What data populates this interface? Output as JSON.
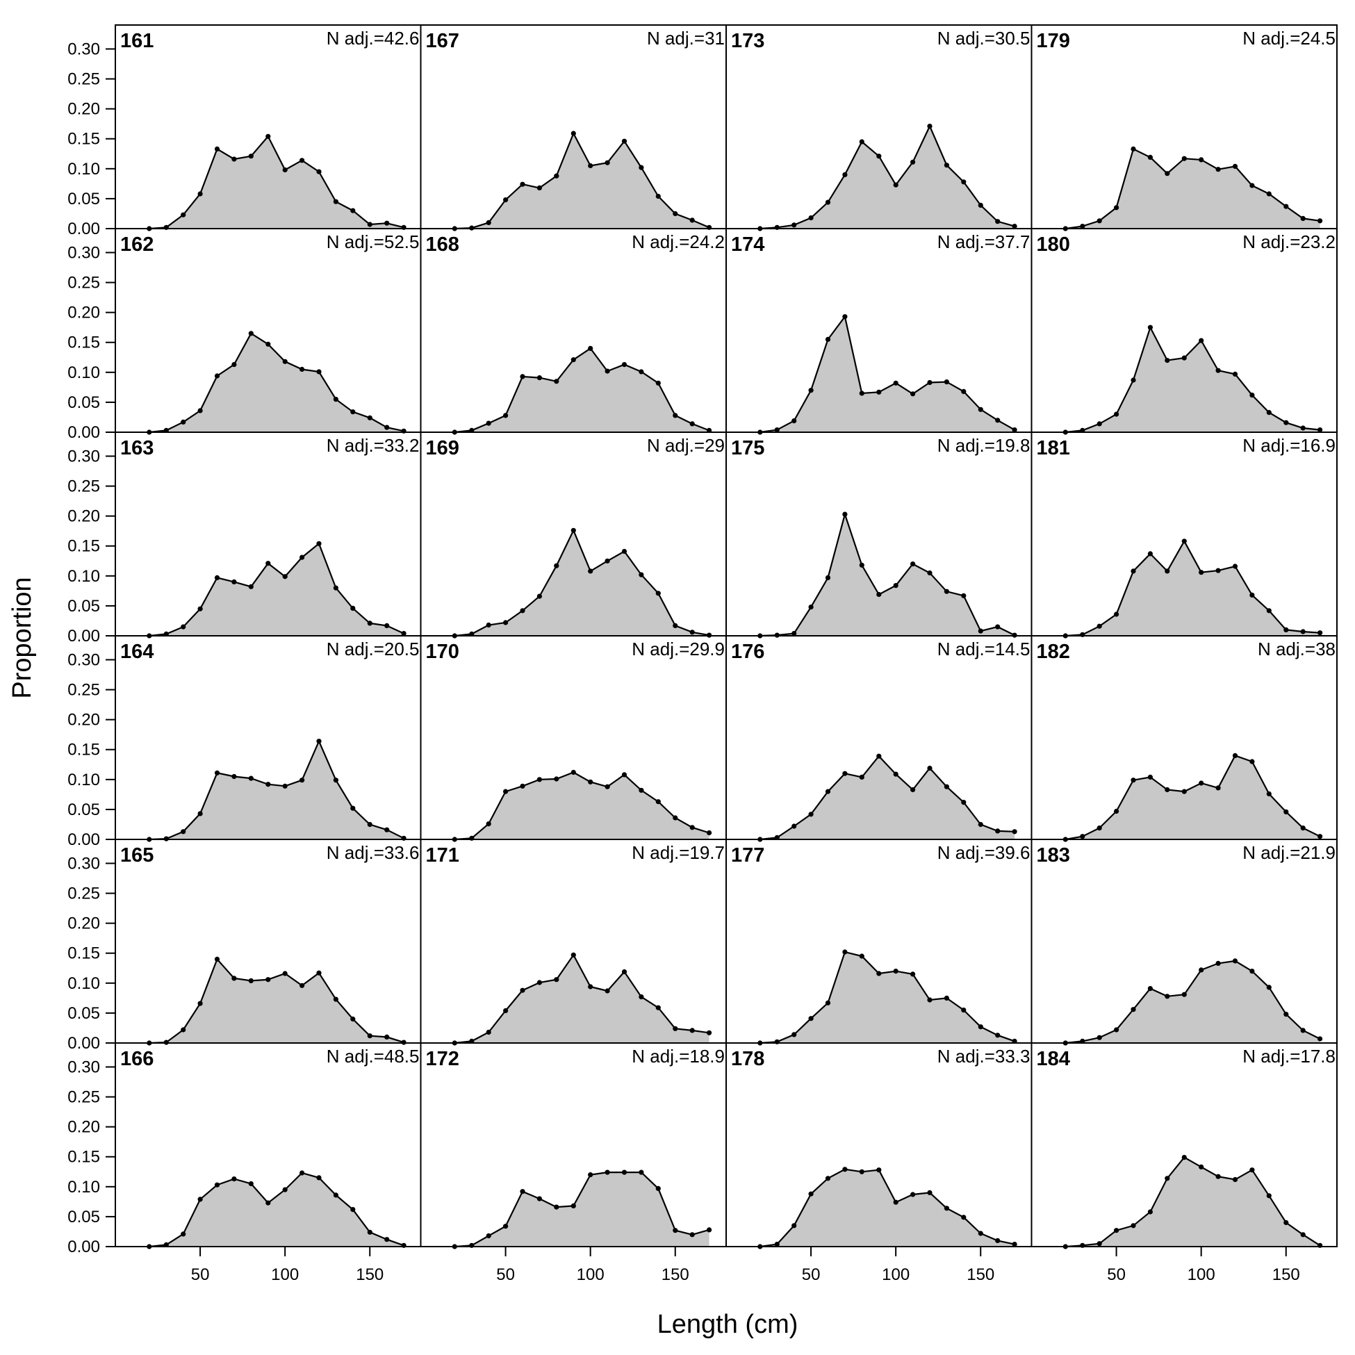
{
  "chart_data": {
    "type": "area",
    "xlabel": "Length (cm)",
    "ylabel": "Proportion",
    "xlim": [
      0,
      180
    ],
    "ylim": [
      0,
      0.34
    ],
    "x_ticks": [
      50,
      100,
      150
    ],
    "y_ticks": [
      "0.00",
      "0.05",
      "0.10",
      "0.15",
      "0.20",
      "0.25",
      "0.30"
    ],
    "x": [
      20,
      30,
      40,
      50,
      60,
      70,
      80,
      90,
      100,
      110,
      120,
      130,
      140,
      150,
      160,
      170
    ],
    "fill_color": "#c8c8c8",
    "line_color": "#000000",
    "panels": [
      {
        "id": "161",
        "n_label": "N adj.=42.6",
        "values": [
          0.0,
          0.002,
          0.023,
          0.058,
          0.133,
          0.116,
          0.121,
          0.154,
          0.098,
          0.114,
          0.095,
          0.045,
          0.03,
          0.007,
          0.009,
          0.002
        ]
      },
      {
        "id": "162",
        "n_label": "N adj.=52.5",
        "values": [
          0.0,
          0.003,
          0.017,
          0.036,
          0.094,
          0.113,
          0.165,
          0.147,
          0.118,
          0.105,
          0.101,
          0.055,
          0.034,
          0.024,
          0.008,
          0.002
        ]
      },
      {
        "id": "163",
        "n_label": "N adj.=33.2",
        "values": [
          0.0,
          0.003,
          0.015,
          0.045,
          0.097,
          0.09,
          0.082,
          0.121,
          0.099,
          0.131,
          0.154,
          0.08,
          0.046,
          0.021,
          0.017,
          0.004
        ]
      },
      {
        "id": "164",
        "n_label": "N adj.=20.5",
        "values": [
          0.0,
          0.001,
          0.013,
          0.043,
          0.111,
          0.105,
          0.102,
          0.092,
          0.089,
          0.099,
          0.164,
          0.099,
          0.052,
          0.025,
          0.016,
          0.002
        ]
      },
      {
        "id": "165",
        "n_label": "N adj.=33.6",
        "values": [
          0.0,
          0.001,
          0.022,
          0.066,
          0.14,
          0.108,
          0.104,
          0.106,
          0.116,
          0.096,
          0.117,
          0.073,
          0.04,
          0.012,
          0.01,
          0.001
        ]
      },
      {
        "id": "166",
        "n_label": "N adj.=48.5",
        "values": [
          0.0,
          0.003,
          0.021,
          0.079,
          0.103,
          0.113,
          0.105,
          0.073,
          0.095,
          0.123,
          0.115,
          0.086,
          0.062,
          0.024,
          0.012,
          0.002
        ]
      },
      {
        "id": "167",
        "n_label": "N adj.=31",
        "values": [
          0.0,
          0.001,
          0.01,
          0.048,
          0.074,
          0.068,
          0.088,
          0.159,
          0.105,
          0.11,
          0.146,
          0.102,
          0.054,
          0.025,
          0.014,
          0.002
        ]
      },
      {
        "id": "168",
        "n_label": "N adj.=24.2",
        "values": [
          0.0,
          0.003,
          0.015,
          0.028,
          0.093,
          0.091,
          0.085,
          0.121,
          0.14,
          0.102,
          0.113,
          0.101,
          0.082,
          0.028,
          0.014,
          0.003
        ]
      },
      {
        "id": "169",
        "n_label": "N adj.=29",
        "values": [
          0.0,
          0.003,
          0.018,
          0.022,
          0.042,
          0.066,
          0.117,
          0.176,
          0.108,
          0.125,
          0.141,
          0.102,
          0.071,
          0.017,
          0.006,
          0.001
        ]
      },
      {
        "id": "170",
        "n_label": "N adj.=29.9",
        "values": [
          0.0,
          0.002,
          0.026,
          0.08,
          0.089,
          0.1,
          0.101,
          0.112,
          0.096,
          0.088,
          0.108,
          0.082,
          0.063,
          0.036,
          0.02,
          0.011
        ]
      },
      {
        "id": "171",
        "n_label": "N adj.=19.7",
        "values": [
          0.0,
          0.003,
          0.018,
          0.054,
          0.088,
          0.101,
          0.106,
          0.147,
          0.094,
          0.087,
          0.119,
          0.077,
          0.059,
          0.024,
          0.021,
          0.017
        ]
      },
      {
        "id": "172",
        "n_label": "N adj.=18.9",
        "values": [
          0.0,
          0.002,
          0.018,
          0.034,
          0.092,
          0.08,
          0.066,
          0.068,
          0.12,
          0.124,
          0.124,
          0.124,
          0.097,
          0.027,
          0.02,
          0.028
        ]
      },
      {
        "id": "173",
        "n_label": "N adj.=30.5",
        "values": [
          0.0,
          0.002,
          0.006,
          0.018,
          0.044,
          0.09,
          0.145,
          0.121,
          0.073,
          0.111,
          0.171,
          0.106,
          0.078,
          0.039,
          0.012,
          0.004
        ]
      },
      {
        "id": "174",
        "n_label": "N adj.=37.7",
        "values": [
          0.0,
          0.004,
          0.019,
          0.07,
          0.155,
          0.193,
          0.065,
          0.067,
          0.082,
          0.064,
          0.083,
          0.084,
          0.068,
          0.038,
          0.02,
          0.004
        ]
      },
      {
        "id": "175",
        "n_label": "N adj.=19.8",
        "values": [
          0.0,
          0.001,
          0.004,
          0.048,
          0.097,
          0.203,
          0.118,
          0.069,
          0.084,
          0.12,
          0.105,
          0.074,
          0.067,
          0.008,
          0.015,
          0.001
        ]
      },
      {
        "id": "176",
        "n_label": "N adj.=14.5",
        "values": [
          0.0,
          0.003,
          0.022,
          0.042,
          0.08,
          0.11,
          0.104,
          0.139,
          0.109,
          0.083,
          0.119,
          0.088,
          0.062,
          0.025,
          0.014,
          0.013
        ]
      },
      {
        "id": "177",
        "n_label": "N adj.=39.6",
        "values": [
          0.0,
          0.002,
          0.014,
          0.041,
          0.067,
          0.152,
          0.145,
          0.116,
          0.12,
          0.115,
          0.072,
          0.075,
          0.055,
          0.027,
          0.013,
          0.003
        ]
      },
      {
        "id": "178",
        "n_label": "N adj.=33.3",
        "values": [
          0.0,
          0.004,
          0.035,
          0.088,
          0.114,
          0.129,
          0.125,
          0.128,
          0.074,
          0.087,
          0.09,
          0.064,
          0.049,
          0.022,
          0.01,
          0.004
        ]
      },
      {
        "id": "179",
        "n_label": "N adj.=24.5",
        "values": [
          0.0,
          0.004,
          0.013,
          0.035,
          0.133,
          0.119,
          0.092,
          0.117,
          0.115,
          0.099,
          0.104,
          0.072,
          0.058,
          0.037,
          0.017,
          0.013
        ]
      },
      {
        "id": "180",
        "n_label": "N adj.=23.2",
        "values": [
          0.0,
          0.003,
          0.014,
          0.03,
          0.087,
          0.175,
          0.12,
          0.124,
          0.153,
          0.103,
          0.097,
          0.062,
          0.033,
          0.016,
          0.007,
          0.004
        ]
      },
      {
        "id": "181",
        "n_label": "N adj.=16.9",
        "values": [
          0.0,
          0.002,
          0.016,
          0.036,
          0.108,
          0.137,
          0.108,
          0.158,
          0.106,
          0.109,
          0.116,
          0.068,
          0.042,
          0.01,
          0.007,
          0.005
        ]
      },
      {
        "id": "182",
        "n_label": "N adj.=38",
        "values": [
          0.0,
          0.005,
          0.019,
          0.047,
          0.099,
          0.104,
          0.083,
          0.08,
          0.094,
          0.086,
          0.14,
          0.13,
          0.076,
          0.046,
          0.019,
          0.005
        ]
      },
      {
        "id": "183",
        "n_label": "N adj.=21.9",
        "values": [
          0.0,
          0.003,
          0.009,
          0.022,
          0.056,
          0.091,
          0.078,
          0.081,
          0.122,
          0.133,
          0.137,
          0.12,
          0.093,
          0.048,
          0.021,
          0.007
        ]
      },
      {
        "id": "184",
        "n_label": "N adj.=17.8",
        "values": [
          0.0,
          0.002,
          0.005,
          0.027,
          0.035,
          0.058,
          0.114,
          0.149,
          0.133,
          0.117,
          0.112,
          0.128,
          0.085,
          0.04,
          0.02,
          0.002
        ]
      }
    ]
  }
}
